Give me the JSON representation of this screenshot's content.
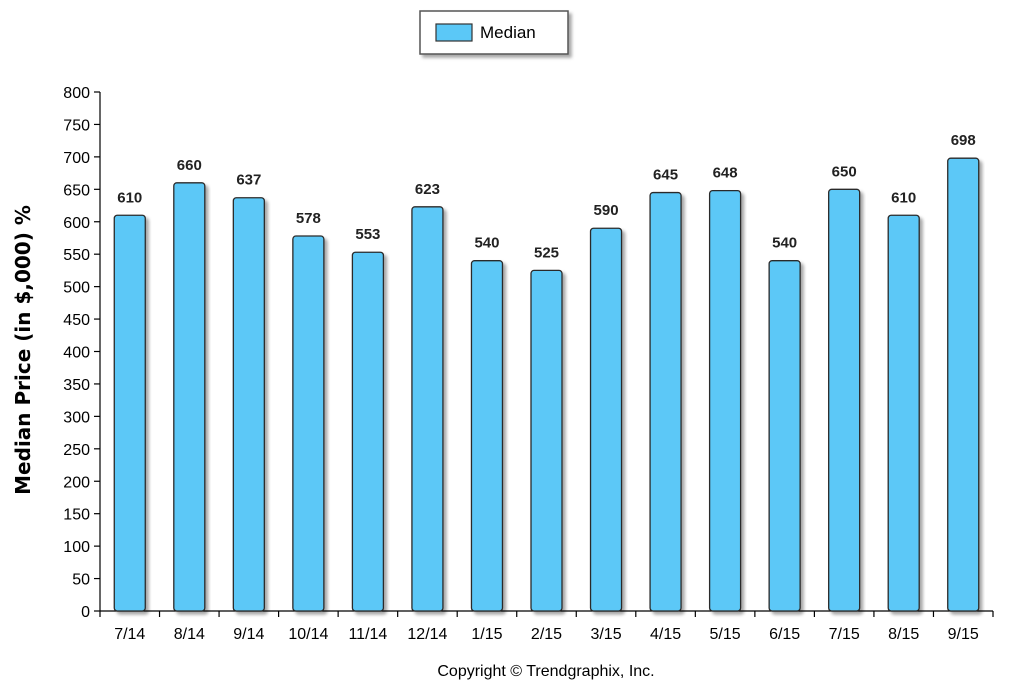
{
  "chart_data": {
    "type": "bar",
    "categories": [
      "7/14",
      "8/14",
      "9/14",
      "10/14",
      "11/14",
      "12/14",
      "1/15",
      "2/15",
      "3/15",
      "4/15",
      "5/15",
      "6/15",
      "7/15",
      "8/15",
      "9/15"
    ],
    "series": [
      {
        "name": "Median",
        "values": [
          610,
          660,
          637,
          578,
          553,
          623,
          540,
          525,
          590,
          645,
          648,
          540,
          650,
          610,
          698
        ],
        "color": "#5bc8f7"
      }
    ],
    "xlabel": "",
    "ylabel": "Median Price (in $,000) %",
    "ylim": [
      0,
      800
    ],
    "yticks": [
      0,
      50,
      100,
      150,
      200,
      250,
      300,
      350,
      400,
      450,
      500,
      550,
      600,
      650,
      700,
      750,
      800
    ],
    "grid": false,
    "legend_position": "top-center",
    "show_data_labels": true
  },
  "footer": {
    "copyright": "Copyright © Trendgraphix, Inc."
  }
}
